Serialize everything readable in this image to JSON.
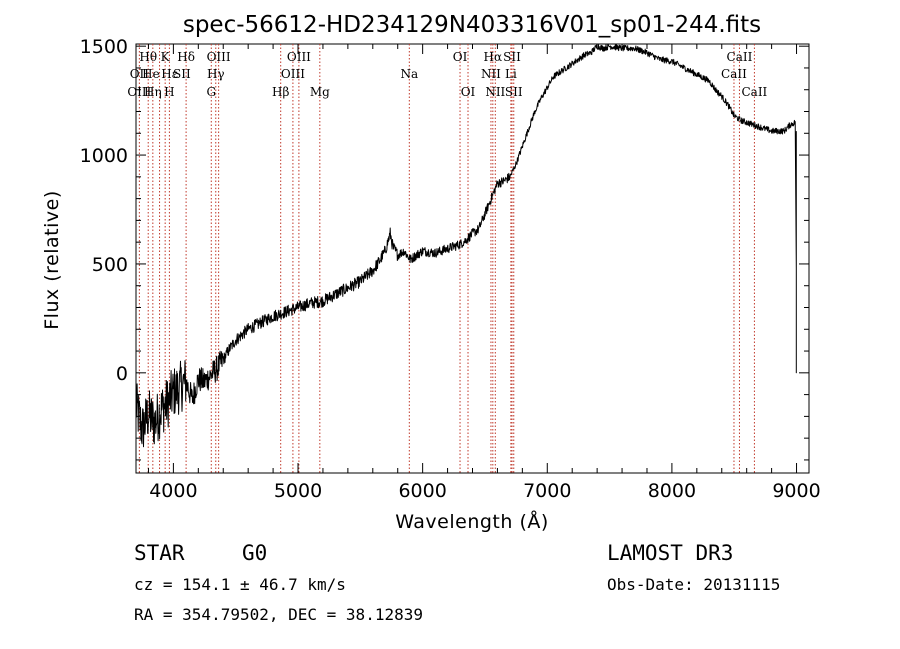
{
  "chart_data": {
    "type": "line",
    "title": "spec-56612-HD234129N403316V01_sp01-244.fits",
    "xlabel": "Wavelength (Å)",
    "ylabel": "Flux (relative)",
    "xlim": [
      3700,
      9100
    ],
    "ylim": [
      -460,
      1510
    ],
    "x_ticks": [
      {
        "value": 4000,
        "label": "4000"
      },
      {
        "value": 5000,
        "label": "5000"
      },
      {
        "value": 6000,
        "label": "6000"
      },
      {
        "value": 7000,
        "label": "7000"
      },
      {
        "value": 8000,
        "label": "8000"
      },
      {
        "value": 9000,
        "label": "9000"
      }
    ],
    "y_ticks": [
      {
        "value": 0,
        "label": "0"
      },
      {
        "value": 500,
        "label": "500"
      },
      {
        "value": 1000,
        "label": "1000"
      },
      {
        "value": 1500,
        "label": "1500"
      }
    ],
    "series": [
      {
        "name": "flux",
        "x": [
          3700,
          3750,
          3800,
          3850,
          3900,
          3950,
          4000,
          4050,
          4100,
          4150,
          4200,
          4250,
          4300,
          4350,
          4400,
          4450,
          4500,
          4600,
          4700,
          4800,
          4900,
          5000,
          5100,
          5200,
          5300,
          5400,
          5500,
          5600,
          5650,
          5700,
          5740,
          5760,
          5800,
          5850,
          5900,
          5950,
          6000,
          6100,
          6200,
          6300,
          6350,
          6400,
          6450,
          6500,
          6550,
          6600,
          6650,
          6700,
          6750,
          6800,
          6850,
          6900,
          6950,
          7000,
          7050,
          7100,
          7150,
          7200,
          7250,
          7300,
          7350,
          7400,
          7450,
          7500,
          7600,
          7700,
          7800,
          7900,
          8000,
          8100,
          8200,
          8300,
          8350,
          8400,
          8450,
          8500,
          8550,
          8600,
          8650,
          8700,
          8750,
          8800,
          8850,
          8900,
          8950,
          8990
        ],
        "y": [
          -150,
          -260,
          -190,
          -230,
          -170,
          -140,
          -90,
          -70,
          -40,
          -120,
          -30,
          -40,
          -10,
          20,
          60,
          110,
          150,
          200,
          230,
          260,
          280,
          300,
          320,
          330,
          360,
          390,
          420,
          470,
          510,
          560,
          640,
          580,
          540,
          560,
          520,
          540,
          560,
          550,
          570,
          590,
          610,
          640,
          660,
          730,
          800,
          870,
          880,
          900,
          960,
          1040,
          1120,
          1200,
          1260,
          1310,
          1360,
          1380,
          1400,
          1420,
          1440,
          1460,
          1470,
          1500,
          1490,
          1500,
          1490,
          1490,
          1470,
          1440,
          1430,
          1400,
          1370,
          1340,
          1300,
          1270,
          1230,
          1180,
          1160,
          1150,
          1140,
          1130,
          1120,
          1110,
          1110,
          1110,
          1140,
          1150
        ]
      }
    ],
    "annotations": [
      {
        "text": "Hθ",
        "x": 3798,
        "row": 1
      },
      {
        "text": "OII",
        "x": 3727,
        "row": 2
      },
      {
        "text": "OIII",
        "x": 3727,
        "row": 3
      },
      {
        "text": "He",
        "x": 3820,
        "row": 2
      },
      {
        "text": "Hη",
        "x": 3835,
        "row": 3
      },
      {
        "text": "K",
        "x": 3934,
        "row": 1
      },
      {
        "text": "Hε",
        "x": 3970,
        "row": 2
      },
      {
        "text": "H",
        "x": 3968,
        "row": 3
      },
      {
        "text": "SII",
        "x": 4068,
        "row": 2
      },
      {
        "text": "Hδ",
        "x": 4102,
        "row": 1
      },
      {
        "text": "OIII",
        "x": 4363,
        "row": 1
      },
      {
        "text": "Hγ",
        "x": 4340,
        "row": 2
      },
      {
        "text": "G",
        "x": 4304,
        "row": 3
      },
      {
        "text": "Hβ",
        "x": 4861,
        "row": 3
      },
      {
        "text": "OIII",
        "x": 5007,
        "row": 1
      },
      {
        "text": "OIII",
        "x": 4959,
        "row": 2
      },
      {
        "text": "Mg",
        "x": 5175,
        "row": 3
      },
      {
        "text": "Na",
        "x": 5893,
        "row": 2
      },
      {
        "text": "OI",
        "x": 6300,
        "row": 1
      },
      {
        "text": "OI",
        "x": 6364,
        "row": 3
      },
      {
        "text": "Hα",
        "x": 6563,
        "row": 1
      },
      {
        "text": "NII",
        "x": 6548,
        "row": 2
      },
      {
        "text": "NII",
        "x": 6583,
        "row": 3
      },
      {
        "text": "SII",
        "x": 6717,
        "row": 1
      },
      {
        "text": "Li",
        "x": 6708,
        "row": 2
      },
      {
        "text": "SII",
        "x": 6731,
        "row": 3
      },
      {
        "text": "CaII",
        "x": 8542,
        "row": 1
      },
      {
        "text": "CaII",
        "x": 8498,
        "row": 2
      },
      {
        "text": "CaII",
        "x": 8662,
        "row": 3
      }
    ],
    "line_markers": [
      3727,
      3798,
      3835,
      3889,
      3934,
      3968,
      4102,
      4304,
      4340,
      4363,
      4861,
      4959,
      5007,
      5175,
      5893,
      6300,
      6364,
      6548,
      6563,
      6583,
      6708,
      6717,
      6731,
      8498,
      8542,
      8662
    ],
    "grid": false,
    "legend": "none",
    "colors": {
      "spectrum": "#000000",
      "line_markers": "#c0392b"
    }
  },
  "info": {
    "object_class": "STAR",
    "subclass": "G0",
    "survey": "LAMOST DR3",
    "redshift": "cz =  154.1 ± 46.7 km/s",
    "obs_date": "Obs-Date: 20131115",
    "coords": "RA = 354.79502, DEC =  38.12839"
  }
}
